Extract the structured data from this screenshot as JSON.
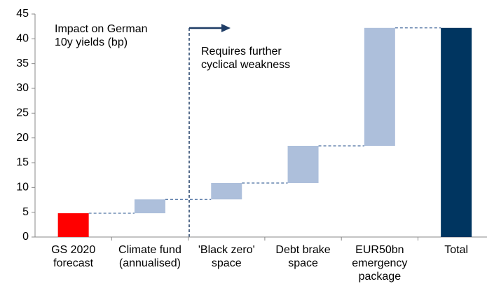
{
  "chart_data": {
    "type": "waterfall",
    "categories": [
      "GS 2020\nforecast",
      "Climate fund\n(annualised)",
      "'Black zero'\nspace",
      "Debt brake\nspace",
      "EUR50bn\nemergency\npackage",
      "Total"
    ],
    "values": [
      4.8,
      2.8,
      3.3,
      7.5,
      23.8,
      42.2
    ],
    "measure": [
      "absolute",
      "relative",
      "relative",
      "relative",
      "relative",
      "total"
    ],
    "colors": [
      "#ff0000",
      "#adbfdb",
      "#adbfdb",
      "#adbfdb",
      "#adbfdb",
      "#003560"
    ],
    "ylim": [
      0,
      45
    ],
    "yticks": [
      0,
      5,
      10,
      15,
      20,
      25,
      30,
      35,
      40,
      45
    ],
    "annotations": [
      "Impact on German\n10y yields (bp)",
      "Requires further\ncyclical weakness"
    ]
  }
}
